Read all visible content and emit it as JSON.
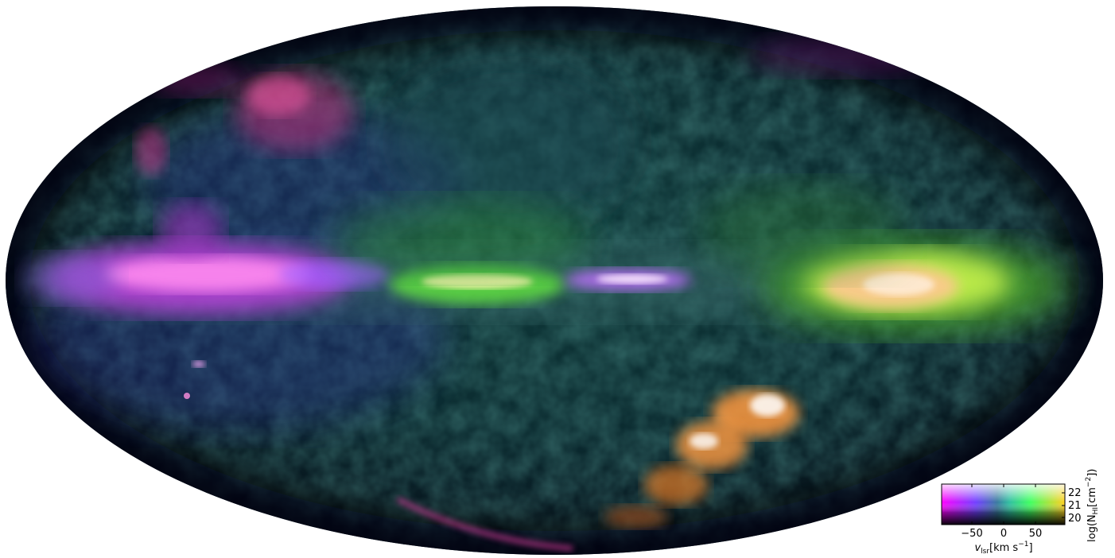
{
  "colorbar": {
    "x_ticks": [
      "−50",
      "0",
      "50"
    ],
    "x_label_main": "v",
    "x_label_sub": "lsr",
    "x_label_units": "[km s",
    "x_label_exp": "−1",
    "x_label_end": "]",
    "y_ticks": [
      "22",
      "21",
      "20"
    ],
    "y_label_pre": "log(N",
    "y_label_sub": "HI",
    "y_label_units": "[cm",
    "y_label_exp": "−2",
    "y_label_end": "])"
  },
  "colors": {
    "background": "#ffffff",
    "sky_base": "#0c1e22",
    "negative_velocity": "#ff5aff",
    "zero_velocity": "#3a6b8a",
    "positive_velocity": "#ffd060"
  }
}
